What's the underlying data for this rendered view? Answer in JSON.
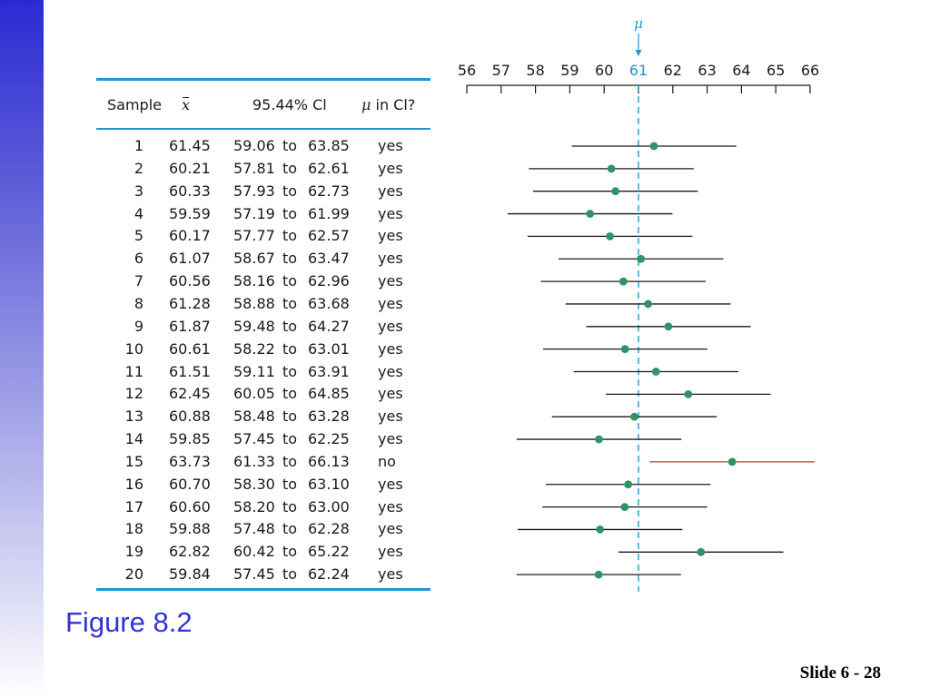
{
  "table": {
    "headers": {
      "sample": "Sample",
      "mean": "x",
      "ci": "95.44% Cl",
      "mu_in_ci": "in Cl?",
      "mu_symbol": "μ"
    },
    "rows": [
      {
        "sample": "1",
        "mean": "61.45",
        "lower": "59.06",
        "to": "to",
        "upper": "63.85",
        "in": "yes"
      },
      {
        "sample": "2",
        "mean": "60.21",
        "lower": "57.81",
        "to": "to",
        "upper": "62.61",
        "in": "yes"
      },
      {
        "sample": "3",
        "mean": "60.33",
        "lower": "57.93",
        "to": "to",
        "upper": "62.73",
        "in": "yes"
      },
      {
        "sample": "4",
        "mean": "59.59",
        "lower": "57.19",
        "to": "to",
        "upper": "61.99",
        "in": "yes"
      },
      {
        "sample": "5",
        "mean": "60.17",
        "lower": "57.77",
        "to": "to",
        "upper": "62.57",
        "in": "yes"
      },
      {
        "sample": "6",
        "mean": "61.07",
        "lower": "58.67",
        "to": "to",
        "upper": "63.47",
        "in": "yes"
      },
      {
        "sample": "7",
        "mean": "60.56",
        "lower": "58.16",
        "to": "to",
        "upper": "62.96",
        "in": "yes"
      },
      {
        "sample": "8",
        "mean": "61.28",
        "lower": "58.88",
        "to": "to",
        "upper": "63.68",
        "in": "yes"
      },
      {
        "sample": "9",
        "mean": "61.87",
        "lower": "59.48",
        "to": "to",
        "upper": "64.27",
        "in": "yes"
      },
      {
        "sample": "10",
        "mean": "60.61",
        "lower": "58.22",
        "to": "to",
        "upper": "63.01",
        "in": "yes"
      },
      {
        "sample": "11",
        "mean": "61.51",
        "lower": "59.11",
        "to": "to",
        "upper": "63.91",
        "in": "yes"
      },
      {
        "sample": "12",
        "mean": "62.45",
        "lower": "60.05",
        "to": "to",
        "upper": "64.85",
        "in": "yes"
      },
      {
        "sample": "13",
        "mean": "60.88",
        "lower": "58.48",
        "to": "to",
        "upper": "63.28",
        "in": "yes"
      },
      {
        "sample": "14",
        "mean": "59.85",
        "lower": "57.45",
        "to": "to",
        "upper": "62.25",
        "in": "yes"
      },
      {
        "sample": "15",
        "mean": "63.73",
        "lower": "61.33",
        "to": "to",
        "upper": "66.13",
        "in": "no"
      },
      {
        "sample": "16",
        "mean": "60.70",
        "lower": "58.30",
        "to": "to",
        "upper": "63.10",
        "in": "yes"
      },
      {
        "sample": "17",
        "mean": "60.60",
        "lower": "58.20",
        "to": "to",
        "upper": "63.00",
        "in": "yes"
      },
      {
        "sample": "18",
        "mean": "59.88",
        "lower": "57.48",
        "to": "to",
        "upper": "62.28",
        "in": "yes"
      },
      {
        "sample": "19",
        "mean": "62.82",
        "lower": "60.42",
        "to": "to",
        "upper": "65.22",
        "in": "yes"
      },
      {
        "sample": "20",
        "mean": "59.84",
        "lower": "57.45",
        "to": "to",
        "upper": "62.24",
        "in": "yes"
      }
    ]
  },
  "chart_data": {
    "type": "scatter",
    "subtype": "confidence-interval",
    "xlim": [
      56,
      66
    ],
    "ticks": [
      56,
      57,
      58,
      59,
      60,
      61,
      62,
      63,
      64,
      65,
      66
    ],
    "highlight_tick": 61,
    "reference": {
      "label": "μ",
      "value": 61
    },
    "samples": [
      1,
      2,
      3,
      4,
      5,
      6,
      7,
      8,
      9,
      10,
      11,
      12,
      13,
      14,
      15,
      16,
      17,
      18,
      19,
      20
    ],
    "means": [
      61.45,
      60.21,
      60.33,
      59.59,
      60.17,
      61.07,
      60.56,
      61.28,
      61.87,
      60.61,
      61.51,
      62.45,
      60.88,
      59.85,
      63.73,
      60.7,
      60.6,
      59.88,
      62.82,
      59.84
    ],
    "lower": [
      59.06,
      57.81,
      57.93,
      57.19,
      57.77,
      58.67,
      58.16,
      58.88,
      59.48,
      58.22,
      59.11,
      60.05,
      58.48,
      57.45,
      61.33,
      58.3,
      58.2,
      57.48,
      60.42,
      57.45
    ],
    "upper": [
      63.85,
      62.61,
      62.73,
      61.99,
      62.57,
      63.47,
      62.96,
      63.68,
      64.27,
      63.01,
      63.91,
      64.85,
      63.28,
      62.25,
      66.13,
      63.1,
      63.0,
      62.28,
      65.22,
      62.24
    ],
    "contains_mu": [
      true,
      true,
      true,
      true,
      true,
      true,
      true,
      true,
      true,
      true,
      true,
      true,
      true,
      true,
      false,
      true,
      true,
      true,
      true,
      true
    ],
    "colors": {
      "point": "#2e9467",
      "interval": "#1a1a1a",
      "miss_interval": "#c0393b",
      "reference": "#1f97d6"
    }
  },
  "footer": {
    "figure_label": "Figure 8.2",
    "slide_number": "Slide 6 - 28"
  }
}
